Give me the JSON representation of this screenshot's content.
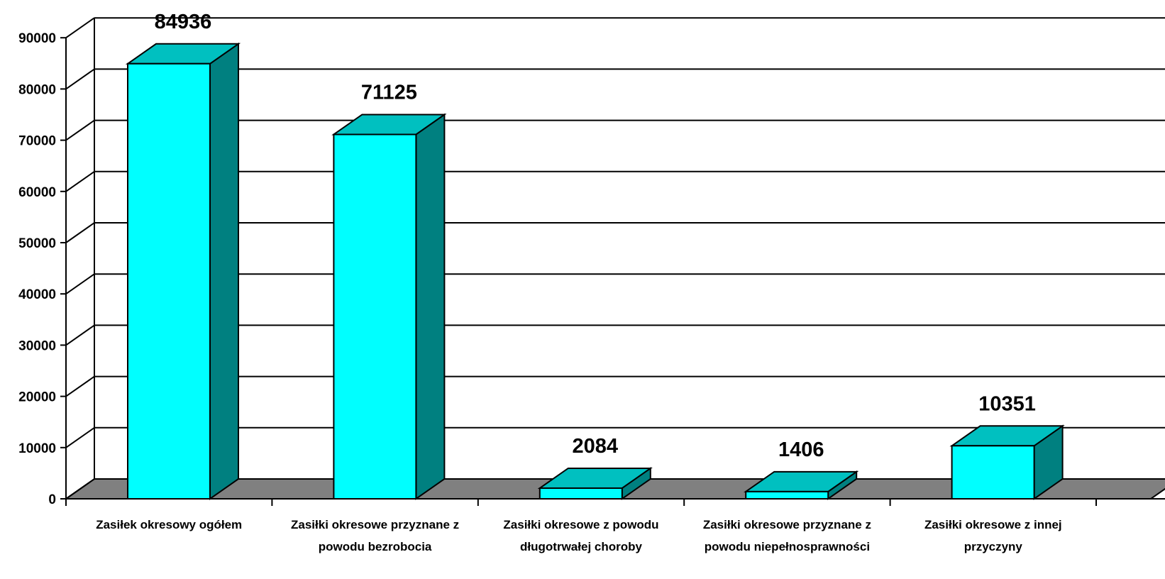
{
  "chart_data": {
    "type": "bar",
    "categories": [
      [
        "Zasiłek okresowy ogółem"
      ],
      [
        "Zasiłki okresowe przyznane z",
        "powodu bezrobocia"
      ],
      [
        "Zasiłki okresowe z powodu",
        "długotrwałej choroby"
      ],
      [
        "Zasiłki okresowe przyznane z",
        "powodu niepełnosprawności"
      ],
      [
        "Zasiłki okresowe z innej",
        "przyczyny"
      ]
    ],
    "values": [
      84936,
      71125,
      2084,
      1406,
      10351
    ],
    "data_labels": [
      "84936",
      "71125",
      "2084",
      "1406",
      "10351"
    ],
    "ylim": [
      0,
      90000
    ],
    "yticks": [
      "0",
      "10000",
      "20000",
      "30000",
      "40000",
      "50000",
      "60000",
      "70000",
      "80000",
      "90000"
    ],
    "grid": true,
    "three_d": true,
    "colors": {
      "bar_front": "#00ffff",
      "bar_top": "#00c0c0",
      "bar_side": "#008080",
      "floor": "#808080"
    }
  }
}
